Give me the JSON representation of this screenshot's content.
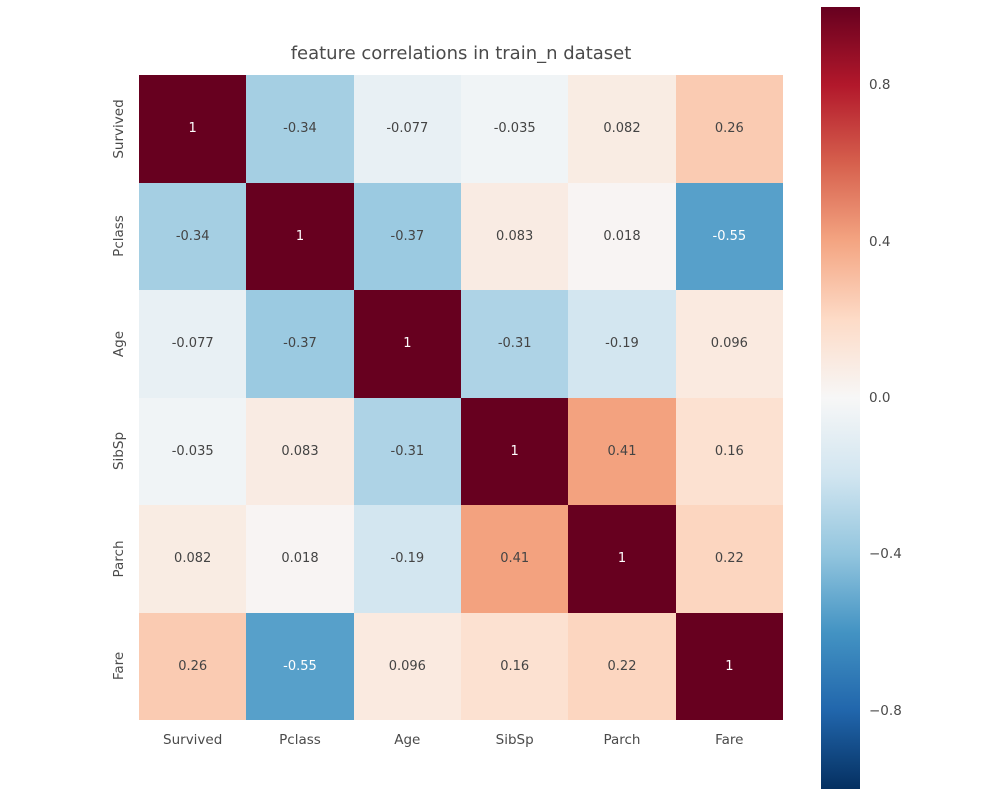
{
  "title": "feature correlations in train_n dataset",
  "chart_data": {
    "type": "heatmap",
    "title": "feature correlations in train_n dataset",
    "x_categories": [
      "Survived",
      "Pclass",
      "Age",
      "SibSp",
      "Parch",
      "Fare"
    ],
    "y_categories": [
      "Survived",
      "Pclass",
      "Age",
      "SibSp",
      "Parch",
      "Fare"
    ],
    "matrix": [
      [
        1,
        -0.34,
        -0.077,
        -0.035,
        0.082,
        0.26
      ],
      [
        -0.34,
        1,
        -0.37,
        0.083,
        0.018,
        -0.55
      ],
      [
        -0.077,
        -0.37,
        1,
        -0.31,
        -0.19,
        0.096
      ],
      [
        -0.035,
        0.083,
        -0.31,
        1,
        0.41,
        0.16
      ],
      [
        0.082,
        0.018,
        -0.19,
        0.41,
        1,
        0.22
      ],
      [
        0.26,
        -0.55,
        0.096,
        0.16,
        0.22,
        1
      ]
    ],
    "cell_labels": [
      [
        "1",
        "-0.34",
        "-0.077",
        "-0.035",
        "0.082",
        "0.26"
      ],
      [
        "-0.34",
        "1",
        "-0.37",
        "0.083",
        "0.018",
        "-0.55"
      ],
      [
        "-0.077",
        "-0.37",
        "1",
        "-0.31",
        "-0.19",
        "0.096"
      ],
      [
        "-0.035",
        "0.083",
        "-0.31",
        "1",
        "0.41",
        "0.16"
      ],
      [
        "0.082",
        "0.018",
        "-0.19",
        "0.41",
        "1",
        "0.22"
      ],
      [
        "0.26",
        "-0.55",
        "0.096",
        "0.16",
        "0.22",
        "1"
      ]
    ],
    "vmin": -1,
    "vmax": 1,
    "colormap": "RdBu_r",
    "colormap_anchors": [
      "#053061",
      "#2166ac",
      "#4393c3",
      "#92c5de",
      "#d1e5f0",
      "#f7f7f7",
      "#fddbc7",
      "#f4a582",
      "#d6604d",
      "#b2182b",
      "#67001f"
    ],
    "colorbar": {
      "position": "right",
      "tick_labels": [
        "0.8",
        "0.4",
        "0.0",
        "−0.4",
        "−0.8"
      ],
      "tick_values": [
        0.8,
        0.4,
        0.0,
        -0.4,
        -0.8
      ]
    },
    "legend": "none",
    "grid": false
  },
  "colors": {
    "background": "#ffffff",
    "title_text": "#4a4a4a",
    "tick_text": "#4a4a4a",
    "annot_dark": "#444444",
    "annot_light": "#ffffff"
  }
}
